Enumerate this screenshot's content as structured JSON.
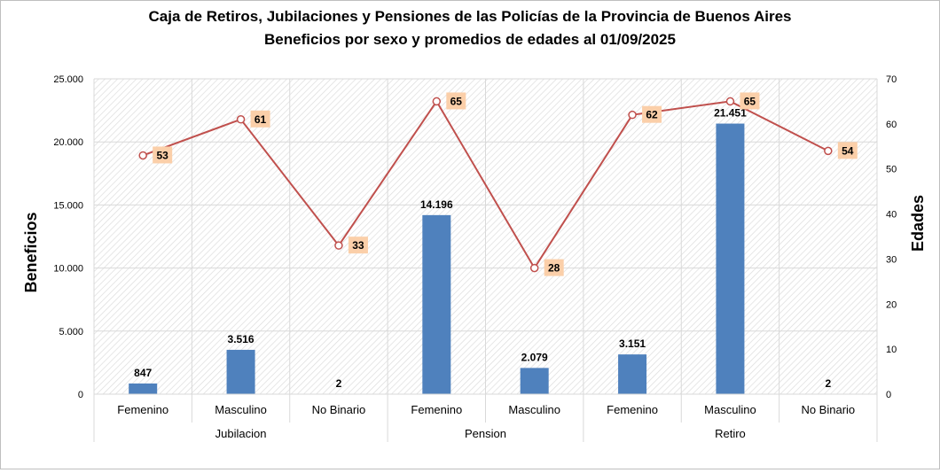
{
  "chart_data": {
    "type": "bar",
    "title": "Caja de Retiros, Jubilaciones y Pensiones de las Policías de la Provincia de Buenos Aires",
    "subtitle": "Beneficios por sexo y promedios de edades al 01/09/2025",
    "ylabel": "Beneficios",
    "y2label": "Edades",
    "ylim": [
      0,
      25000
    ],
    "y2lim": [
      0,
      70
    ],
    "y_ticks": [
      "0",
      "5.000",
      "10.000",
      "15.000",
      "20.000",
      "25.000"
    ],
    "y2_ticks": [
      "0",
      "10",
      "20",
      "30",
      "40",
      "50",
      "60",
      "70"
    ],
    "groups": [
      {
        "name": "Jubilacion",
        "categories": [
          "Femenino",
          "Masculino",
          "No Binario"
        ]
      },
      {
        "name": "Pension",
        "categories": [
          "Femenino",
          "Masculino"
        ]
      },
      {
        "name": "Retiro",
        "categories": [
          "Femenino",
          "Masculino",
          "No Binario"
        ]
      }
    ],
    "series": [
      {
        "name": "Beneficios",
        "type": "bar",
        "axis": "left",
        "color": "#4f81bd",
        "values": [
          847,
          3516,
          2,
          14196,
          2079,
          3151,
          21451,
          2
        ],
        "labels": [
          "847",
          "3.516",
          "2",
          "14.196",
          "2.079",
          "3.151",
          "21.451",
          "2"
        ]
      },
      {
        "name": "Edades",
        "type": "line",
        "axis": "right",
        "color": "#c0504d",
        "label_bg": "#fbcfa9",
        "values": [
          53,
          61,
          33,
          65,
          28,
          62,
          65,
          54
        ],
        "labels": [
          "53",
          "61",
          "33",
          "65",
          "28",
          "62",
          "65",
          "54"
        ]
      }
    ]
  }
}
